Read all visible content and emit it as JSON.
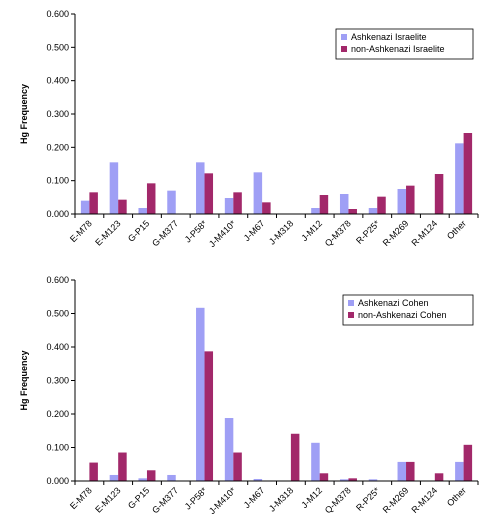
{
  "colors": {
    "series_a": "#9f9ff5",
    "series_b": "#a2286a",
    "axis": "#000000",
    "legend_border": "#000000"
  },
  "chart_data": [
    {
      "type": "bar",
      "ylabel": "Hg Frequency",
      "ylim": [
        0,
        0.6
      ],
      "yticks": [
        "0.000",
        "0.100",
        "0.200",
        "0.300",
        "0.400",
        "0.500",
        "0.600"
      ],
      "legend_position": "top-right",
      "categories": [
        "E-M78",
        "E-M123",
        "G-P15",
        "G-M377",
        "J-P58*",
        "J-M410*",
        "J-M67",
        "J-M318",
        "J-M12",
        "Q-M378",
        "R-P25*",
        "R-M269",
        "R-M124",
        "Other"
      ],
      "series": [
        {
          "name": "Ashkenazi Israelite",
          "values": [
            0.04,
            0.155,
            0.018,
            0.07,
            0.155,
            0.048,
            0.125,
            0,
            0.018,
            0.06,
            0.018,
            0.075,
            0,
            0.212
          ]
        },
        {
          "name": "non-Ashkenazi Israelite",
          "values": [
            0.065,
            0.043,
            0.092,
            0,
            0.122,
            0.065,
            0.035,
            0,
            0.057,
            0.015,
            0.052,
            0.085,
            0.12,
            0.243
          ]
        }
      ]
    },
    {
      "type": "bar",
      "ylabel": "Hg Frequency",
      "ylim": [
        0,
        0.6
      ],
      "yticks": [
        "0.000",
        "0.100",
        "0.200",
        "0.300",
        "0.400",
        "0.500",
        "0.600"
      ],
      "legend_position": "top-right",
      "categories": [
        "E-M78",
        "E-M123",
        "G-P15",
        "G-M377",
        "J-P58*",
        "J-M410*",
        "J-M67",
        "J-M318",
        "J-M12",
        "Q-M378",
        "R-P25*",
        "R-M269",
        "R-M124",
        "Other"
      ],
      "series": [
        {
          "name": "Ashkenazi Cohen",
          "values": [
            0,
            0.018,
            0.008,
            0.018,
            0.517,
            0.188,
            0.006,
            0,
            0.114,
            0.005,
            0.005,
            0.057,
            0,
            0.057
          ]
        },
        {
          "name": "non-Ashkenazi Cohen",
          "values": [
            0.055,
            0.085,
            0.032,
            0,
            0.387,
            0.085,
            0,
            0.141,
            0.023,
            0.008,
            0,
            0.057,
            0.023,
            0.108
          ]
        }
      ]
    }
  ]
}
